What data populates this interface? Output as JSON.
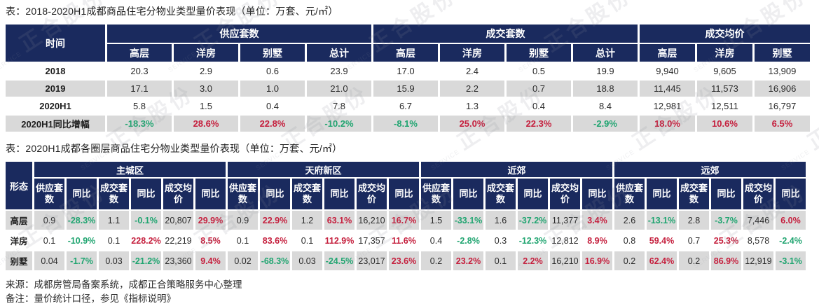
{
  "colors": {
    "navy": "#1A2A5E",
    "stripe": "#D9D9D9",
    "green": "#21A571",
    "red": "#C5203E"
  },
  "watermark": {
    "cn": "正合股份",
    "en": "SERVICE"
  },
  "table1": {
    "title": "表：2018-2020H1成都商品住宅分物业类型量价表现（单位：万套、元/㎡）",
    "corner_label": "时间",
    "groups": [
      {
        "label": "供应套数",
        "columns": [
          "高层",
          "洋房",
          "别墅",
          "总计"
        ]
      },
      {
        "label": "成交套数",
        "columns": [
          "高层",
          "洋房",
          "别墅",
          "总计"
        ]
      },
      {
        "label": "成交均价",
        "columns": [
          "高层",
          "洋房",
          "别墅"
        ]
      }
    ],
    "rows": [
      {
        "label": "2018",
        "cells": [
          "20.3",
          "2.9",
          "0.6",
          "23.9",
          "17.0",
          "2.4",
          "0.5",
          "19.9",
          "9,940",
          "9,605",
          "13,909"
        ]
      },
      {
        "label": "2019",
        "cells": [
          "17.1",
          "3.0",
          "1.0",
          "21.0",
          "15.9",
          "2.2",
          "0.7",
          "18.8",
          "11,445",
          "11,573",
          "16,906"
        ]
      },
      {
        "label": "2020H1",
        "cells": [
          "5.8",
          "1.5",
          "0.4",
          "7.8",
          "6.7",
          "1.3",
          "0.4",
          "8.4",
          "12,981",
          "12,511",
          "16,797"
        ]
      },
      {
        "label": "2020H1同比增幅",
        "cells": [
          {
            "v": "-18.3%",
            "c": "g"
          },
          {
            "v": "28.6%",
            "c": "r"
          },
          {
            "v": "22.8%",
            "c": "r"
          },
          {
            "v": "-10.2%",
            "c": "g"
          },
          {
            "v": "-8.1%",
            "c": "g"
          },
          {
            "v": "25.0%",
            "c": "r"
          },
          {
            "v": "22.3%",
            "c": "r"
          },
          {
            "v": "-2.9%",
            "c": "g"
          },
          {
            "v": "18.0%",
            "c": "r"
          },
          {
            "v": "10.6%",
            "c": "r"
          },
          {
            "v": "6.5%",
            "c": "r"
          }
        ]
      }
    ]
  },
  "table2": {
    "title": "表：2020H1成都各圈层商品住宅分物业类型量价表现（单位：万套、元/㎡）",
    "corner_label": "形态",
    "groups": [
      "主城区",
      "天府新区",
      "近郊",
      "远郊"
    ],
    "sub_columns": [
      "供应套数",
      "同比",
      "成交套数",
      "同比",
      "成交均价",
      "同比"
    ],
    "rows": [
      {
        "label": "高层",
        "cells": [
          "0.9",
          {
            "v": "-28.3%",
            "c": "g"
          },
          "1.1",
          {
            "v": "-0.1%",
            "c": "g"
          },
          "20,807",
          {
            "v": "29.9%",
            "c": "r"
          },
          "0.9",
          {
            "v": "22.9%",
            "c": "r"
          },
          "1.2",
          {
            "v": "63.1%",
            "c": "r"
          },
          "16,210",
          {
            "v": "16.7%",
            "c": "r"
          },
          "1.5",
          {
            "v": "-33.1%",
            "c": "g"
          },
          "1.6",
          {
            "v": "-37.2%",
            "c": "g"
          },
          "11,377",
          {
            "v": "3.4%",
            "c": "r"
          },
          "2.6",
          {
            "v": "-13.1%",
            "c": "g"
          },
          "2.8",
          {
            "v": "-3.7%",
            "c": "g"
          },
          "7,446",
          {
            "v": "6.0%",
            "c": "r"
          }
        ]
      },
      {
        "label": "洋房",
        "cells": [
          "0.1",
          {
            "v": "-10.9%",
            "c": "g"
          },
          "0.1",
          {
            "v": "228.2%",
            "c": "r"
          },
          "22,219",
          {
            "v": "8.5%",
            "c": "r"
          },
          "0.1",
          {
            "v": "83.6%",
            "c": "r"
          },
          "0.1",
          {
            "v": "112.9%",
            "c": "r"
          },
          "17,357",
          {
            "v": "11.6%",
            "c": "r"
          },
          "0.4",
          {
            "v": "-2.8%",
            "c": "g"
          },
          "0.3",
          {
            "v": "-12.3%",
            "c": "g"
          },
          "12,812",
          {
            "v": "8.9%",
            "c": "r"
          },
          "0.8",
          {
            "v": "59.4%",
            "c": "r"
          },
          "0.7",
          {
            "v": "25.3%",
            "c": "r"
          },
          "8,578",
          {
            "v": "-2.4%",
            "c": "g"
          }
        ]
      },
      {
        "label": "别墅",
        "cells": [
          "0.04",
          {
            "v": "-1.7%",
            "c": "g"
          },
          "0.03",
          {
            "v": "-21.2%",
            "c": "g"
          },
          "23,360",
          {
            "v": "9.4%",
            "c": "r"
          },
          "0.02",
          {
            "v": "-68.3%",
            "c": "g"
          },
          "0.03",
          {
            "v": "-24.5%",
            "c": "g"
          },
          "23,017",
          {
            "v": "23.6%",
            "c": "r"
          },
          "0.2",
          {
            "v": "23.2%",
            "c": "r"
          },
          "0.1",
          {
            "v": "2.2%",
            "c": "r"
          },
          "16,210",
          {
            "v": "16.9%",
            "c": "r"
          },
          "0.2",
          {
            "v": "62.4%",
            "c": "r"
          },
          "0.2",
          {
            "v": "86.9%",
            "c": "r"
          },
          "12,919",
          {
            "v": "-3.1%",
            "c": "g"
          }
        ]
      }
    ]
  },
  "footer": {
    "source": "来源：成都房管局备案系统，成都正合策略服务中心整理",
    "remark": "备注：量价统计口径，参见《指标说明》"
  }
}
